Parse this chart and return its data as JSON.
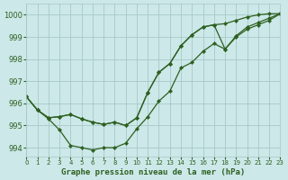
{
  "title": "Graphe pression niveau de la mer (hPa)",
  "background_color": "#cce8e8",
  "grid_color": "#a8c8c8",
  "line_color": "#2d6020",
  "xlim": [
    0,
    23
  ],
  "ylim": [
    993.6,
    1000.5
  ],
  "yticks": [
    994,
    995,
    996,
    997,
    998,
    999,
    1000
  ],
  "xticks": [
    0,
    1,
    2,
    3,
    4,
    5,
    6,
    7,
    8,
    9,
    10,
    11,
    12,
    13,
    14,
    15,
    16,
    17,
    18,
    19,
    20,
    21,
    22,
    23
  ],
  "line1_y": [
    996.3,
    995.7,
    995.3,
    994.8,
    994.1,
    994.0,
    993.9,
    994.0,
    994.0,
    994.2,
    994.85,
    995.4,
    996.1,
    996.55,
    997.6,
    997.85,
    998.35,
    998.7,
    998.45,
    999.05,
    999.45,
    999.65,
    999.85,
    1000.05
  ],
  "line2_y": [
    996.3,
    995.7,
    995.35,
    995.4,
    995.5,
    995.3,
    995.15,
    995.05,
    995.15,
    995.0,
    995.35,
    996.5,
    997.4,
    997.8,
    998.6,
    999.1,
    999.45,
    999.55,
    999.6,
    999.75,
    999.9,
    1000.0,
    1000.05,
    1000.05
  ],
  "line3_y": [
    996.3,
    995.7,
    995.35,
    995.4,
    995.5,
    995.3,
    995.15,
    995.05,
    995.15,
    995.0,
    995.35,
    996.5,
    997.4,
    997.8,
    998.6,
    999.1,
    999.45,
    999.55,
    998.45,
    999.0,
    999.35,
    999.55,
    999.75,
    1000.05
  ]
}
